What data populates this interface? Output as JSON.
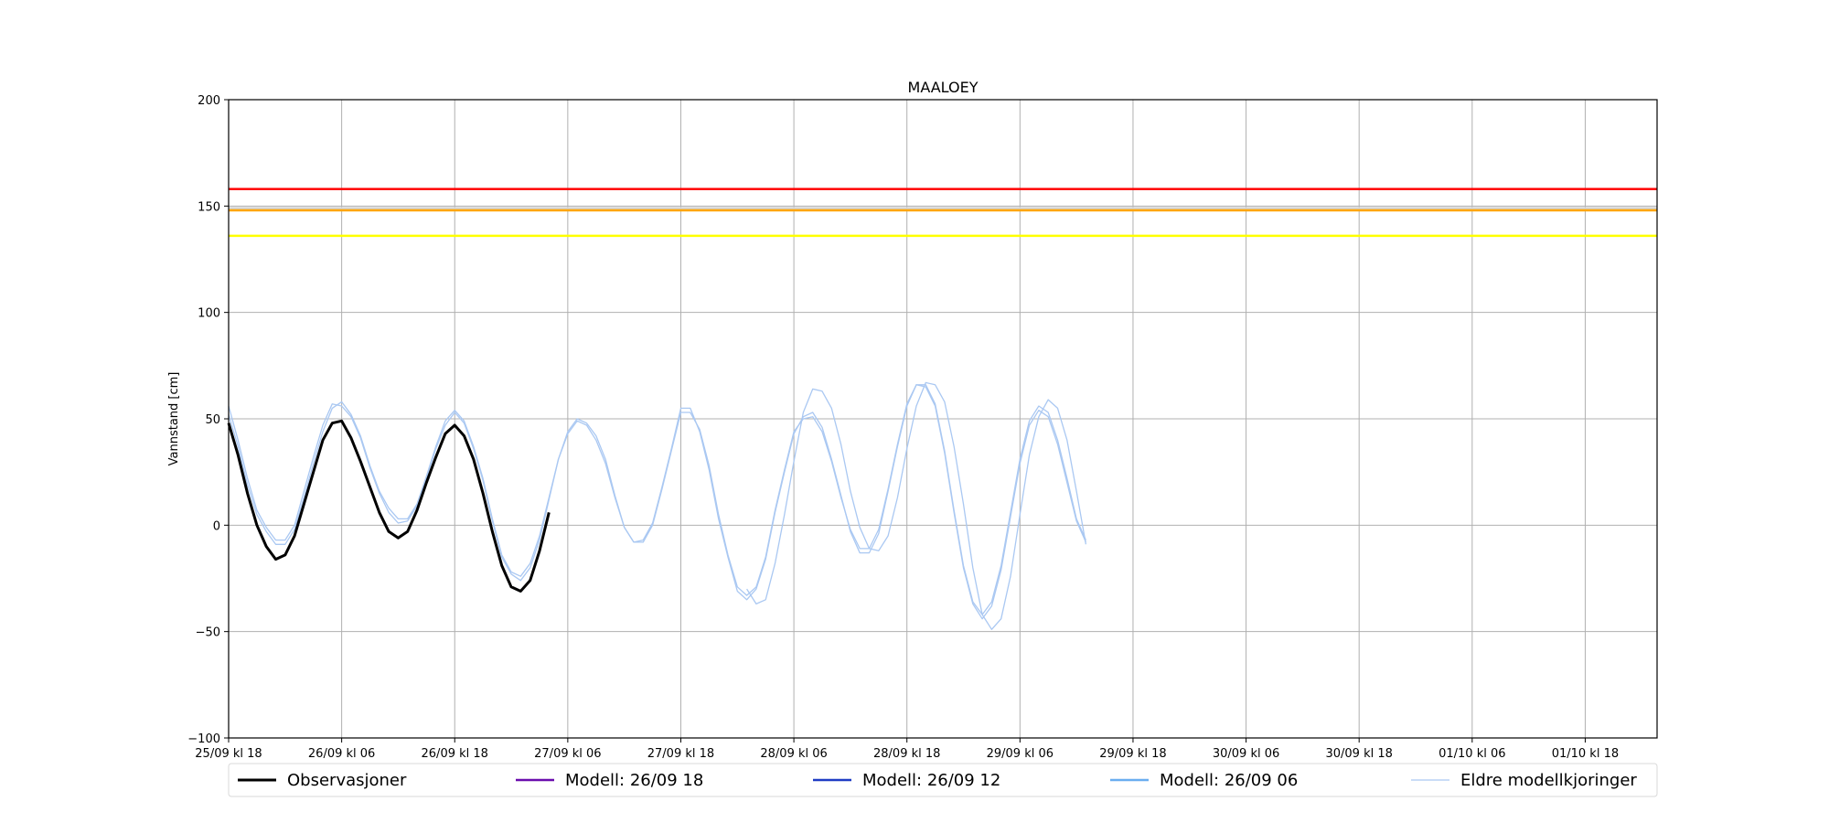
{
  "chart_data": {
    "type": "line",
    "title": "MAALOEY",
    "xlabel": "",
    "ylabel": "Vannstand [cm]",
    "ylim": [
      -100,
      200
    ],
    "yticks": [
      -100,
      -50,
      0,
      50,
      100,
      150,
      200
    ],
    "x_unit": "hours from 25/09 kl 18",
    "xlim": [
      0,
      145
    ],
    "xticks": [
      {
        "t": 0,
        "label": "25/09 kl 18"
      },
      {
        "t": 12,
        "label": "26/09 kl 06"
      },
      {
        "t": 24,
        "label": "26/09 kl 18"
      },
      {
        "t": 36,
        "label": "27/09 kl 06"
      },
      {
        "t": 48,
        "label": "27/09 kl 18"
      },
      {
        "t": 60,
        "label": "28/09 kl 06"
      },
      {
        "t": 72,
        "label": "28/09 kl 18"
      },
      {
        "t": 84,
        "label": "29/09 kl 06"
      },
      {
        "t": 96,
        "label": "29/09 kl 18"
      },
      {
        "t": 108,
        "label": "30/09 kl 06"
      },
      {
        "t": 120,
        "label": "30/09 kl 18"
      },
      {
        "t": 132,
        "label": "01/10 kl 06"
      },
      {
        "t": 144,
        "label": "01/10 kl 18"
      }
    ],
    "grid": true,
    "legend_position": "bottom",
    "thresholds": [
      {
        "value": 158,
        "color": "#ff0000"
      },
      {
        "value": 149,
        "color": "#d3d3d3"
      },
      {
        "value": 148,
        "color": "#ffa500"
      },
      {
        "value": 136,
        "color": "#ffff00"
      }
    ],
    "legend": [
      {
        "label": "Observasjoner",
        "color": "#000000"
      },
      {
        "label": "Modell: 26/09 18",
        "color": "#6a0dad"
      },
      {
        "label": "Modell: 26/09 12",
        "color": "#1f3cc4"
      },
      {
        "label": "Modell: 26/09 06",
        "color": "#6aaef0"
      },
      {
        "label": "Eldre modellkjoringer",
        "color": "#aac8f2"
      }
    ],
    "series": [
      {
        "name": "Observasjoner",
        "color": "#000000",
        "width": 3,
        "x": [
          0,
          1,
          2,
          3,
          4,
          5,
          6,
          7,
          8,
          9,
          10,
          11,
          12,
          13,
          14,
          15,
          16,
          17,
          18,
          19,
          20,
          21,
          22,
          23,
          24,
          25,
          26,
          27,
          28,
          29,
          30,
          31,
          32,
          33,
          34
        ],
        "y": [
          48,
          33,
          15,
          0,
          -10,
          -16,
          -14,
          -5,
          10,
          25,
          40,
          48,
          49,
          41,
          30,
          18,
          6,
          -3,
          -6,
          -3,
          7,
          20,
          32,
          43,
          47,
          42,
          31,
          15,
          -3,
          -19,
          -29,
          -31,
          -26,
          -12,
          6
        ]
      },
      {
        "name": "Eldre modellkjoringer",
        "color": "#aac8f2",
        "width": 1.3,
        "x": [
          0,
          1,
          2,
          3,
          4,
          5,
          6,
          7,
          8,
          9,
          10,
          11,
          12,
          13,
          14,
          15,
          16,
          17,
          18,
          19,
          20,
          21,
          22,
          23,
          24,
          25,
          26,
          27,
          28,
          29,
          30,
          31,
          32,
          33,
          34,
          35,
          36,
          37,
          38,
          39,
          40,
          41,
          42,
          43,
          44,
          45,
          46,
          47,
          48,
          49,
          50,
          51,
          52,
          53,
          54,
          55,
          56,
          57,
          58,
          59,
          60,
          61,
          62,
          63,
          64,
          65,
          66,
          67,
          68,
          69,
          70,
          71,
          72,
          73,
          74,
          75,
          76,
          77,
          78,
          79,
          80,
          81,
          82,
          83,
          84,
          85,
          86,
          87,
          88,
          89,
          90,
          91
        ],
        "y": [
          56,
          40,
          22,
          7,
          -1,
          -7,
          -7,
          0,
          16,
          32,
          47,
          57,
          56,
          51,
          41,
          27,
          15,
          6,
          1,
          2,
          9,
          22,
          36,
          47,
          53,
          48,
          36,
          21,
          2,
          -15,
          -23,
          -26,
          -20,
          -7,
          12,
          31,
          44,
          50,
          48,
          42,
          31,
          14,
          -1,
          -8,
          -8,
          0,
          17,
          35,
          53,
          53,
          45,
          28,
          5,
          -14,
          -29,
          -33,
          -29,
          -15,
          7,
          26,
          44,
          50,
          51,
          44,
          30,
          13,
          -2,
          -11,
          -11,
          -2,
          17,
          38,
          57,
          66,
          65,
          56,
          34,
          6,
          -20,
          -37,
          -44,
          -38,
          -21,
          4,
          29,
          47,
          54,
          51,
          38,
          20,
          2,
          -8
        ]
      },
      {
        "name": "Eldre modellkjoringer",
        "color": "#aac8f2",
        "width": 1.3,
        "x": [
          0,
          1,
          2,
          3,
          4,
          5,
          6,
          7,
          8,
          9,
          10,
          11,
          12,
          13,
          14,
          15,
          16,
          17,
          18,
          19,
          20,
          21,
          22,
          23,
          24,
          25,
          26,
          27,
          28,
          29,
          30,
          31,
          32,
          33,
          34,
          35,
          36,
          37,
          38,
          39,
          40,
          41,
          42,
          43,
          44,
          45,
          46,
          47,
          48,
          49,
          50,
          51,
          52,
          53,
          54,
          55,
          56,
          57,
          58,
          59,
          60,
          61,
          62,
          63,
          64,
          65,
          66,
          67,
          68,
          69,
          70,
          71,
          72,
          73,
          74,
          75,
          76,
          77,
          78,
          79,
          80,
          81,
          82,
          83,
          84,
          85,
          86,
          87,
          88,
          89,
          90,
          91
        ],
        "y": [
          52,
          37,
          19,
          5,
          -3,
          -9,
          -9,
          -2,
          13,
          29,
          44,
          55,
          58,
          52,
          42,
          28,
          16,
          8,
          3,
          3,
          10,
          23,
          37,
          49,
          54,
          49,
          37,
          22,
          3,
          -14,
          -22,
          -24,
          -18,
          -5,
          13,
          31,
          43,
          49,
          47,
          40,
          29,
          13,
          -1,
          -8,
          -7,
          1,
          18,
          36,
          55,
          55,
          44,
          26,
          3,
          -15,
          -31,
          -35,
          -30,
          -16,
          6,
          25,
          43,
          51,
          53,
          46,
          31,
          14,
          -3,
          -13,
          -13,
          -4,
          16,
          37,
          56,
          66,
          66,
          57,
          35,
          7,
          -19,
          -36,
          -42,
          -36,
          -19,
          6,
          31,
          49,
          56,
          53,
          40,
          22,
          3,
          -7
        ]
      },
      {
        "name": "Eldre modellkjoringer",
        "color": "#aac8f2",
        "width": 1.3,
        "x": [
          55,
          56,
          57,
          58,
          59,
          60,
          61,
          62,
          63,
          64,
          65,
          66,
          67,
          68,
          69,
          70,
          71,
          72,
          73,
          74,
          75,
          76,
          77,
          78,
          79,
          80,
          81,
          82,
          83,
          84,
          85,
          86,
          87,
          88,
          89,
          90,
          91
        ],
        "y": [
          -30,
          -37,
          -35,
          -18,
          5,
          30,
          53,
          64,
          63,
          55,
          38,
          16,
          -1,
          -11,
          -12,
          -5,
          13,
          36,
          56,
          67,
          66,
          58,
          37,
          10,
          -20,
          -42,
          -49,
          -44,
          -24,
          5,
          33,
          51,
          59,
          55,
          40,
          16,
          -9
        ]
      }
    ]
  }
}
